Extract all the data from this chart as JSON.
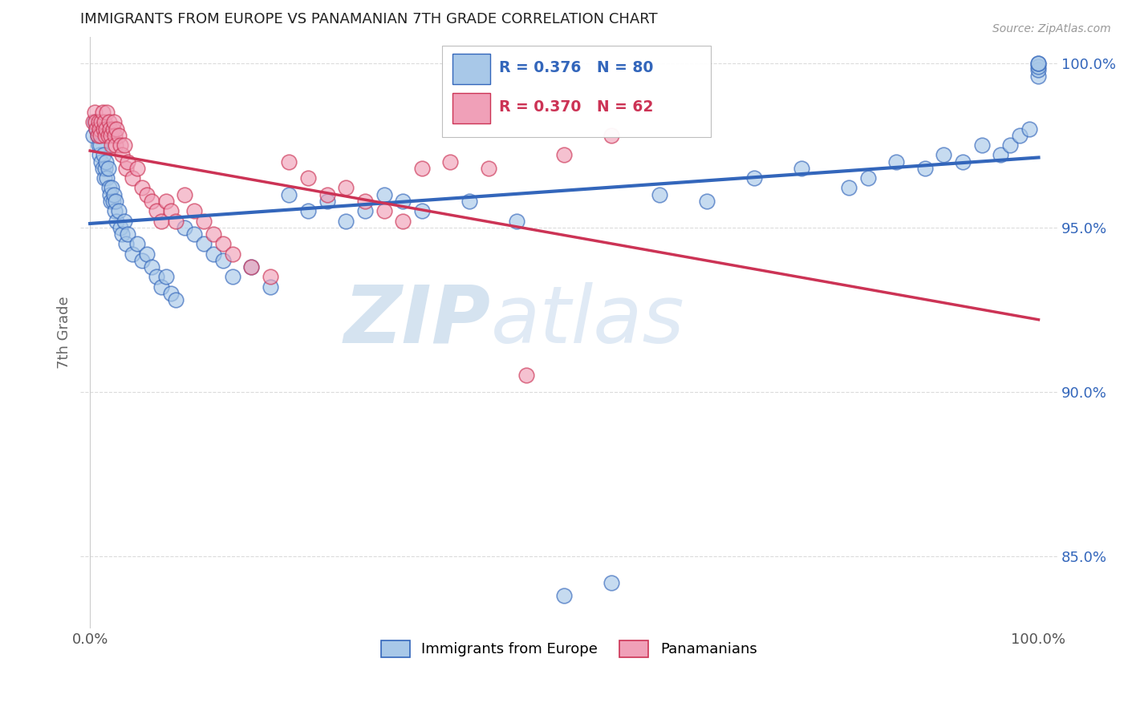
{
  "title": "IMMIGRANTS FROM EUROPE VS PANAMANIAN 7TH GRADE CORRELATION CHART",
  "source": "Source: ZipAtlas.com",
  "ylabel": "7th Grade",
  "blue_R": "0.376",
  "blue_N": "80",
  "pink_R": "0.370",
  "pink_N": "62",
  "blue_color": "#a8c8e8",
  "pink_color": "#f0a0b8",
  "blue_line_color": "#3366bb",
  "pink_line_color": "#cc3355",
  "legend_blue_label": "Immigrants from Europe",
  "legend_pink_label": "Panamanians",
  "xlim": [
    -0.01,
    1.02
  ],
  "ylim": [
    0.828,
    1.008
  ],
  "yticks": [
    0.85,
    0.9,
    0.95,
    1.0
  ],
  "ytick_labels": [
    "85.0%",
    "90.0%",
    "95.0%",
    "100.0%"
  ],
  "xtick_labels": [
    "0.0%",
    "100.0%"
  ],
  "background_color": "#ffffff",
  "grid_color": "#cccccc",
  "watermark_zip": "ZIP",
  "watermark_atlas": "atlas",
  "watermark_color": "#d5e3f0",
  "blue_x": [
    0.003,
    0.005,
    0.007,
    0.008,
    0.009,
    0.01,
    0.011,
    0.012,
    0.013,
    0.014,
    0.015,
    0.016,
    0.017,
    0.018,
    0.019,
    0.02,
    0.021,
    0.022,
    0.023,
    0.024,
    0.025,
    0.026,
    0.027,
    0.028,
    0.03,
    0.032,
    0.034,
    0.036,
    0.038,
    0.04,
    0.045,
    0.05,
    0.055,
    0.06,
    0.065,
    0.07,
    0.075,
    0.08,
    0.085,
    0.09,
    0.1,
    0.11,
    0.12,
    0.13,
    0.14,
    0.15,
    0.17,
    0.19,
    0.21,
    0.23,
    0.25,
    0.27,
    0.29,
    0.31,
    0.33,
    0.35,
    0.4,
    0.45,
    0.5,
    0.55,
    0.6,
    0.65,
    0.7,
    0.75,
    0.8,
    0.82,
    0.85,
    0.88,
    0.9,
    0.92,
    0.94,
    0.96,
    0.97,
    0.98,
    0.99,
    1.0,
    1.0,
    1.0,
    1.0,
    1.0
  ],
  "blue_y": [
    0.978,
    0.982,
    0.98,
    0.978,
    0.975,
    0.972,
    0.975,
    0.97,
    0.968,
    0.972,
    0.965,
    0.968,
    0.97,
    0.965,
    0.968,
    0.962,
    0.96,
    0.958,
    0.962,
    0.958,
    0.96,
    0.955,
    0.958,
    0.952,
    0.955,
    0.95,
    0.948,
    0.952,
    0.945,
    0.948,
    0.942,
    0.945,
    0.94,
    0.942,
    0.938,
    0.935,
    0.932,
    0.935,
    0.93,
    0.928,
    0.95,
    0.948,
    0.945,
    0.942,
    0.94,
    0.935,
    0.938,
    0.932,
    0.96,
    0.955,
    0.958,
    0.952,
    0.955,
    0.96,
    0.958,
    0.955,
    0.958,
    0.952,
    0.838,
    0.842,
    0.96,
    0.958,
    0.965,
    0.968,
    0.962,
    0.965,
    0.97,
    0.968,
    0.972,
    0.97,
    0.975,
    0.972,
    0.975,
    0.978,
    0.98,
    0.996,
    0.998,
    0.999,
    1.0,
    1.0
  ],
  "pink_x": [
    0.003,
    0.005,
    0.006,
    0.007,
    0.008,
    0.009,
    0.01,
    0.011,
    0.012,
    0.013,
    0.014,
    0.015,
    0.016,
    0.017,
    0.018,
    0.019,
    0.02,
    0.021,
    0.022,
    0.023,
    0.024,
    0.025,
    0.026,
    0.027,
    0.028,
    0.03,
    0.032,
    0.034,
    0.036,
    0.038,
    0.04,
    0.045,
    0.05,
    0.055,
    0.06,
    0.065,
    0.07,
    0.075,
    0.08,
    0.085,
    0.09,
    0.1,
    0.11,
    0.12,
    0.13,
    0.14,
    0.15,
    0.17,
    0.19,
    0.21,
    0.23,
    0.25,
    0.27,
    0.29,
    0.31,
    0.33,
    0.35,
    0.38,
    0.42,
    0.46,
    0.5,
    0.55
  ],
  "pink_y": [
    0.982,
    0.985,
    0.982,
    0.98,
    0.978,
    0.982,
    0.98,
    0.978,
    0.982,
    0.985,
    0.98,
    0.982,
    0.978,
    0.98,
    0.985,
    0.978,
    0.982,
    0.98,
    0.978,
    0.975,
    0.98,
    0.982,
    0.978,
    0.975,
    0.98,
    0.978,
    0.975,
    0.972,
    0.975,
    0.968,
    0.97,
    0.965,
    0.968,
    0.962,
    0.96,
    0.958,
    0.955,
    0.952,
    0.958,
    0.955,
    0.952,
    0.96,
    0.955,
    0.952,
    0.948,
    0.945,
    0.942,
    0.938,
    0.935,
    0.97,
    0.965,
    0.96,
    0.962,
    0.958,
    0.955,
    0.952,
    0.968,
    0.97,
    0.968,
    0.905,
    0.972,
    0.978
  ]
}
